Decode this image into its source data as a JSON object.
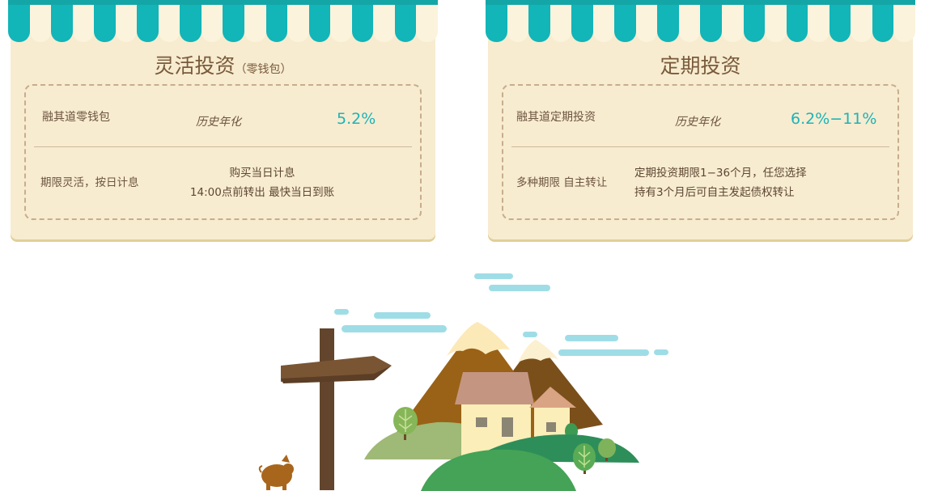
{
  "left_card": {
    "title": "灵活投资",
    "title_sub": "（零钱包）",
    "product_name": "融其道零钱包",
    "rate_label": "历史年化",
    "rate_value": "5.2%",
    "term_label": "期限灵活，按日计息",
    "desc_line1": "购买当日计息",
    "desc_line2": "14:00点前转出 最快当日到账"
  },
  "right_card": {
    "title": "定期投资",
    "product_name": "融其道定期投资",
    "rate_label": "历史年化",
    "rate_value": "6.2%−11%",
    "term_label": "多种期限 自主转让",
    "desc_line1": "定期投资期限1−36个月，任您选择",
    "desc_line2": "持有3个月后可自主发起债权转让"
  },
  "colors": {
    "awning_teal": "#12b5b8",
    "card_bg": "#f7ecd0",
    "rate_teal": "#1cb3b8",
    "title_brown": "#7a5a3c"
  }
}
